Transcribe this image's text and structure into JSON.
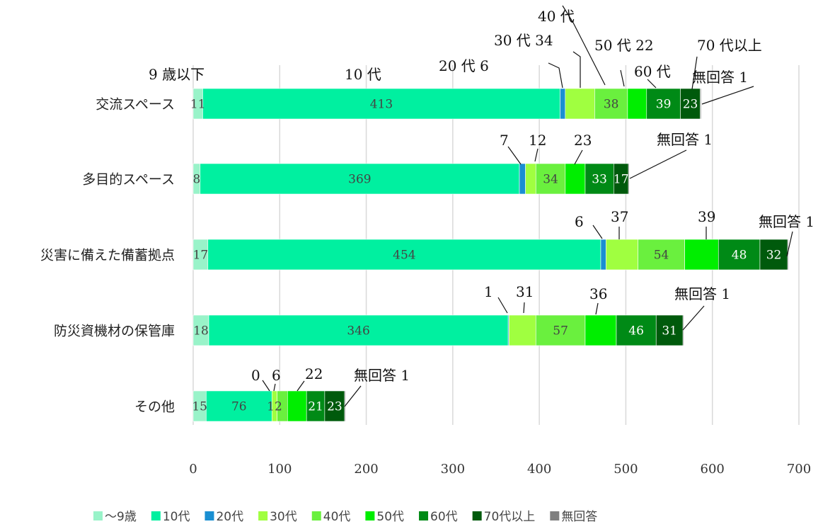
{
  "chart_data": {
    "type": "bar",
    "orientation": "horizontal",
    "stacked": true,
    "categories": [
      "交流スペース",
      "多目的スペース",
      "災害に備えた備蓄拠点",
      "防災資機材の保管庫",
      "その他"
    ],
    "series": [
      {
        "name": "〜9歳",
        "color": "#99f3c9",
        "values": [
          11,
          8,
          17,
          18,
          15
        ]
      },
      {
        "name": "10代",
        "color": "#00f0a0",
        "values": [
          413,
          369,
          454,
          346,
          76
        ]
      },
      {
        "name": "20代",
        "color": "#1a8fd2",
        "values": [
          6,
          7,
          6,
          1,
          0
        ]
      },
      {
        "name": "30代",
        "color": "#a0ff40",
        "values": [
          34,
          12,
          37,
          31,
          6
        ]
      },
      {
        "name": "40代",
        "color": "#6af03e",
        "values": [
          38,
          34,
          54,
          57,
          12
        ]
      },
      {
        "name": "50代",
        "color": "#00ee00",
        "values": [
          22,
          23,
          39,
          36,
          22
        ]
      },
      {
        "name": "60代",
        "color": "#008a16",
        "values": [
          39,
          33,
          48,
          46,
          21
        ]
      },
      {
        "name": "70代以上",
        "color": "#005a0c",
        "values": [
          23,
          17,
          32,
          31,
          23
        ]
      },
      {
        "name": "無回答",
        "color": "#7f7f7f",
        "values": [
          1,
          1,
          1,
          1,
          1
        ]
      }
    ],
    "xlim": [
      0,
      700
    ],
    "xticks": [
      0,
      100,
      200,
      300,
      400,
      500,
      600,
      700
    ],
    "grid": true,
    "legend_position": "bottom",
    "data_labels": [
      [
        "11",
        "413",
        "",
        "",
        "38",
        "",
        "39",
        "23",
        ""
      ],
      [
        "8",
        "369",
        "",
        "",
        "34",
        "",
        "33",
        "17",
        ""
      ],
      [
        "17",
        "454",
        "",
        "",
        "54",
        "",
        "48",
        "32",
        ""
      ],
      [
        "18",
        "346",
        "",
        "",
        "57",
        "",
        "46",
        "31",
        ""
      ],
      [
        "15",
        "76",
        "",
        "12",
        "",
        "",
        "21",
        "23",
        ""
      ]
    ],
    "annotations": [
      {
        "text": "9 歳以下",
        "row": 0
      },
      {
        "text": "10 代",
        "row": 0
      },
      {
        "text": "20 代 6",
        "row": 0
      },
      {
        "text": "30 代 34",
        "row": 0
      },
      {
        "text": "40 代",
        "row": 0
      },
      {
        "text": "50 代 22",
        "row": 0
      },
      {
        "text": "60 代",
        "row": 0
      },
      {
        "text": "70 代以上",
        "row": 0
      },
      {
        "text": "無回答 1",
        "row": 0
      },
      {
        "text": "7",
        "row": 1
      },
      {
        "text": "12",
        "row": 1
      },
      {
        "text": "23",
        "row": 1
      },
      {
        "text": "無回答 1",
        "row": 1
      },
      {
        "text": "6",
        "row": 2
      },
      {
        "text": "37",
        "row": 2
      },
      {
        "text": "39",
        "row": 2
      },
      {
        "text": "無回答 1",
        "row": 2
      },
      {
        "text": "1",
        "row": 3
      },
      {
        "text": "31",
        "row": 3
      },
      {
        "text": "36",
        "row": 3
      },
      {
        "text": "無回答 1",
        "row": 3
      },
      {
        "text": "0",
        "row": 4
      },
      {
        "text": "6",
        "row": 4
      },
      {
        "text": "22",
        "row": 4
      },
      {
        "text": "無回答 1",
        "row": 4
      }
    ]
  }
}
